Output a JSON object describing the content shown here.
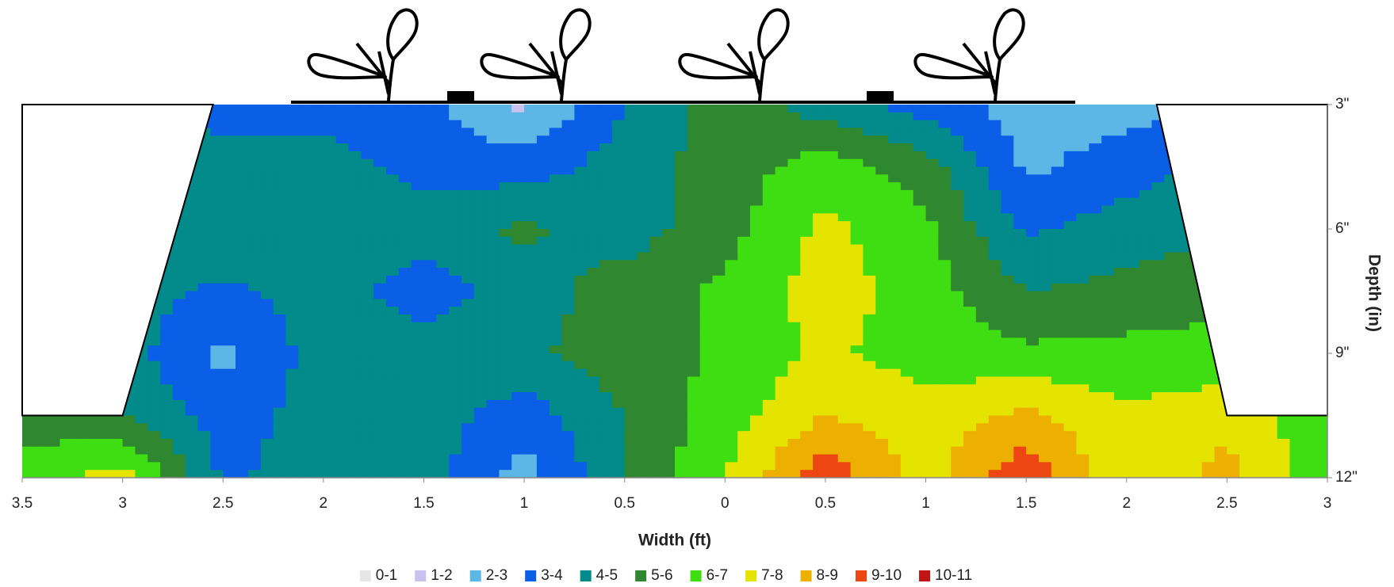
{
  "chart_data": {
    "type": "contour",
    "xlabel": "Width (ft)",
    "ylabel": "Depth (in)",
    "x": [
      -3.5,
      -3,
      -2.5,
      -2,
      -1.5,
      -1,
      -0.5,
      0,
      0.5,
      1,
      1.5,
      2,
      2.5,
      3
    ],
    "y": [
      3,
      4.5,
      6,
      7.5,
      9,
      10.5,
      12
    ],
    "z": [
      [
        4.5,
        4.5,
        3.5,
        3.6,
        3.3,
        1.8,
        4,
        5.5,
        4.5,
        3.5,
        2.5,
        2.6,
        3,
        3
      ],
      [
        4.5,
        4.5,
        4.5,
        4.5,
        3.6,
        3.5,
        4.5,
        5.5,
        6.5,
        5.5,
        2.8,
        3.5,
        4.5,
        4.5
      ],
      [
        4.5,
        4.5,
        5,
        4.6,
        4.5,
        5.2,
        4.5,
        5.6,
        7.3,
        6.2,
        3.8,
        4.5,
        5,
        5
      ],
      [
        4.5,
        4.5,
        3.8,
        4.5,
        3.5,
        4.5,
        5.5,
        6.2,
        7.5,
        6.5,
        5,
        5.3,
        5.5,
        5.5
      ],
      [
        4.5,
        4.5,
        2.7,
        4.5,
        4.5,
        4.8,
        5.5,
        6.2,
        7.2,
        6.5,
        6.2,
        6.3,
        6.5,
        6
      ],
      [
        5.5,
        5,
        3.5,
        4.5,
        4.5,
        3.5,
        5,
        6.5,
        8,
        7.5,
        8.2,
        7.2,
        7.5,
        6.5
      ],
      [
        6.5,
        7.5,
        3.8,
        4.5,
        4.5,
        2.5,
        5,
        7,
        9.7,
        7.5,
        9.8,
        7,
        8.5,
        6
      ]
    ],
    "levels": [
      0,
      1,
      2,
      3,
      4,
      5,
      6,
      7,
      8,
      9,
      10,
      11
    ],
    "series": [
      {
        "name": "0-1",
        "color": "#e6e6e6"
      },
      {
        "name": "1-2",
        "color": "#c9c2ee"
      },
      {
        "name": "2-3",
        "color": "#5cb6e6"
      },
      {
        "name": "3-4",
        "color": "#0b5ee6"
      },
      {
        "name": "4-5",
        "color": "#038b8b"
      },
      {
        "name": "5-6",
        "color": "#2f872f"
      },
      {
        "name": "6-7",
        "color": "#3fde12"
      },
      {
        "name": "7-8",
        "color": "#e4e400"
      },
      {
        "name": "8-9",
        "color": "#eeb000"
      },
      {
        "name": "9-10",
        "color": "#ee4612"
      },
      {
        "name": "10-11",
        "color": "#c21414"
      }
    ],
    "xlim": [
      -3.5,
      3
    ],
    "ylim": [
      3,
      12
    ],
    "xticks": [
      {
        "value": -3.5,
        "label": "3.5"
      },
      {
        "value": -3,
        "label": "3"
      },
      {
        "value": -2.5,
        "label": "2.5"
      },
      {
        "value": -2,
        "label": "2"
      },
      {
        "value": -1.5,
        "label": "1.5"
      },
      {
        "value": -1,
        "label": "1"
      },
      {
        "value": -0.5,
        "label": "0.5"
      },
      0,
      0.5,
      1,
      1.5,
      2,
      2.5,
      3
    ],
    "yticks": [
      {
        "value": 3,
        "label": "3\""
      },
      {
        "value": 6,
        "label": "6\""
      },
      {
        "value": 9,
        "label": "9\""
      },
      {
        "value": 12,
        "label": "12\""
      }
    ],
    "grid": false,
    "legend": "bottom"
  }
}
